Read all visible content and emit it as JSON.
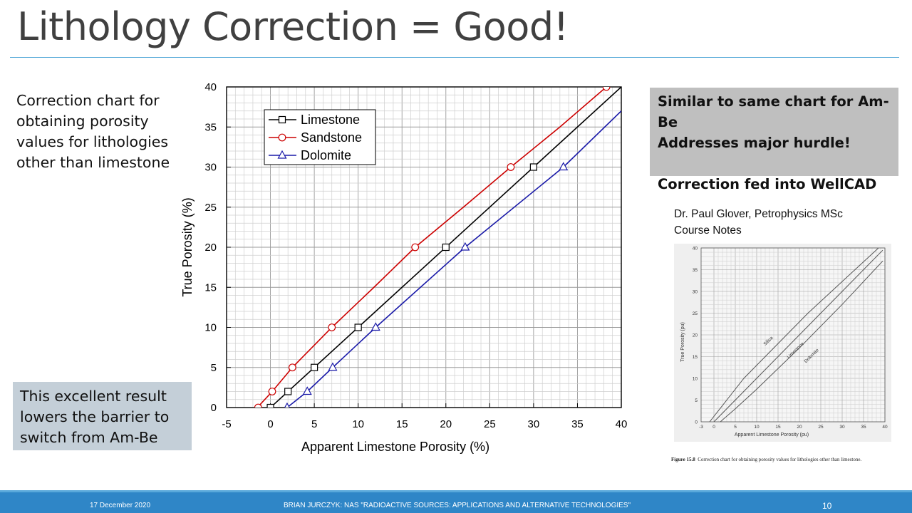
{
  "slide": {
    "title": "Lithology Correction = Good!",
    "left_text": "Correction chart for obtaining porosity values for lithologies other than limestone",
    "note_box": "This excellent result lowers the barrier to switch from Am-Be",
    "gray_box": {
      "line1": "Similar to same chart for Am-Be",
      "line2": "Addresses major hurdle!",
      "line3": "Correction fed into WellCAD"
    },
    "credit": "Dr. Paul Glover, Petrophysics MSc Course Notes",
    "figure_caption_label": "Figure 15.8",
    "figure_caption_text": "Correction chart for obtaining porosity values for lithologies other than limestone."
  },
  "footer": {
    "date": "17 December 2020",
    "center": "BRIAN JURCZYK:   NAS \"RADIOACTIVE SOURCES: APPLICATIONS AND ALTERNATIVE TECHNOLOGIES\"",
    "page": "10"
  },
  "colors": {
    "accent": "#2f86c7",
    "limestone": "#000000",
    "sandstone": "#cc0000",
    "dolomite": "#1a1aa8"
  },
  "chart_data": [
    {
      "type": "line",
      "xlabel": "Apparent Limestone Porosity (%)",
      "ylabel": "True Porosity (%)",
      "xlim": [
        -5,
        40
      ],
      "ylim": [
        0,
        40
      ],
      "xticks": [
        -5,
        0,
        5,
        10,
        15,
        20,
        25,
        30,
        35,
        40
      ],
      "yticks": [
        0,
        5,
        10,
        15,
        20,
        25,
        30,
        35,
        40
      ],
      "grid": true,
      "legend": "top-left",
      "series": [
        {
          "name": "Limestone",
          "marker": "square",
          "color": "#000000",
          "line": [
            [
              0,
              0
            ],
            [
              40,
              40
            ]
          ],
          "points": [
            [
              0,
              0
            ],
            [
              2,
              2
            ],
            [
              5,
              5
            ],
            [
              10,
              10
            ],
            [
              20,
              20
            ],
            [
              30,
              30
            ]
          ]
        },
        {
          "name": "Sandstone",
          "marker": "circle",
          "color": "#cc0000",
          "line": [
            [
              -1.5,
              0
            ],
            [
              0.2,
              2
            ],
            [
              2.5,
              5
            ],
            [
              7,
              10
            ],
            [
              11.8,
              15
            ],
            [
              16.5,
              20
            ],
            [
              22,
              25
            ],
            [
              27.4,
              30
            ],
            [
              33,
              35
            ],
            [
              38.3,
              40
            ]
          ],
          "points": [
            [
              -1.4,
              0
            ],
            [
              0.2,
              2
            ],
            [
              2.5,
              5
            ],
            [
              7,
              10
            ],
            [
              16.5,
              20
            ],
            [
              27.4,
              30
            ],
            [
              38.3,
              40
            ]
          ]
        },
        {
          "name": "Dolomite",
          "marker": "triangle",
          "color": "#1a1aa8",
          "line": [
            [
              1.9,
              0
            ],
            [
              4.2,
              2
            ],
            [
              7.1,
              5
            ],
            [
              12,
              10
            ],
            [
              22.2,
              20
            ],
            [
              33.4,
              30
            ],
            [
              40,
              37
            ]
          ],
          "points": [
            [
              1.9,
              0
            ],
            [
              4.2,
              2
            ],
            [
              7.1,
              5
            ],
            [
              12,
              10
            ],
            [
              22.2,
              20
            ],
            [
              33.4,
              30
            ]
          ]
        }
      ]
    },
    {
      "type": "line",
      "xlabel": "Apparent Limestone Porosity (pu)",
      "ylabel": "True Porosity (pu)",
      "xlim": [
        -3,
        40
      ],
      "ylim": [
        0,
        40
      ],
      "xticks": [
        -3,
        0,
        5,
        10,
        15,
        20,
        25,
        30,
        35,
        40
      ],
      "yticks": [
        0,
        5,
        10,
        15,
        20,
        25,
        30,
        35,
        40
      ],
      "grid": true,
      "series": [
        {
          "name": "Silica",
          "line": [
            [
              -1,
              0
            ],
            [
              3,
              5
            ],
            [
              7,
              10
            ],
            [
              12,
              15
            ],
            [
              17,
              20
            ],
            [
              22,
              25
            ],
            [
              27.5,
              30
            ],
            [
              33,
              35
            ],
            [
              38.5,
              40
            ]
          ]
        },
        {
          "name": "Limestone",
          "line": [
            [
              0,
              0
            ],
            [
              39.5,
              39.5
            ]
          ]
        },
        {
          "name": "Dolomite",
          "line": [
            [
              1.5,
              0
            ],
            [
              5,
              3
            ],
            [
              10,
              7.5
            ],
            [
              20,
              17
            ],
            [
              30,
              27
            ],
            [
              39.5,
              37
            ]
          ]
        }
      ]
    }
  ]
}
